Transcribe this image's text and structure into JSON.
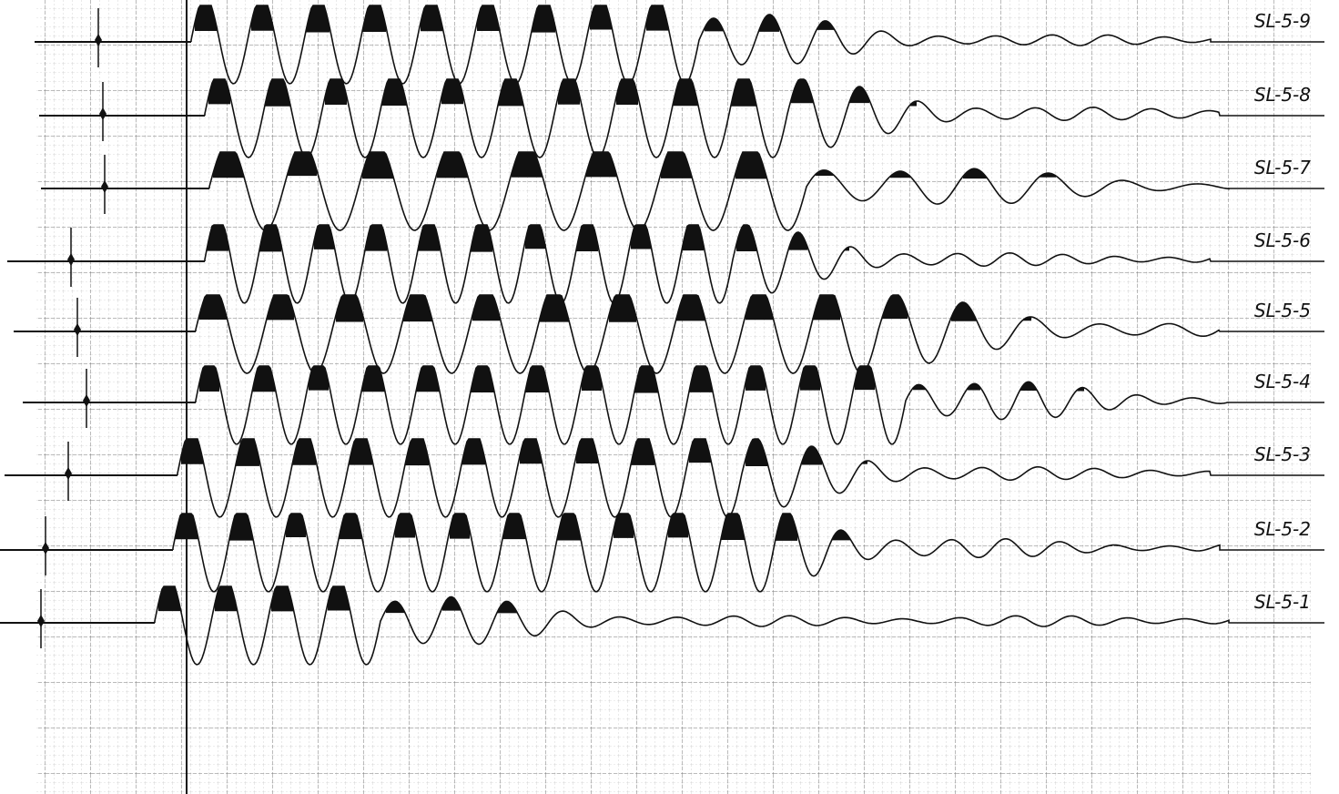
{
  "traces": [
    {
      "label": "SL-5-9"
    },
    {
      "label": "SL-5-8"
    },
    {
      "label": "SL-5-7"
    },
    {
      "label": "SL-5-6"
    },
    {
      "label": "SL-5-5"
    },
    {
      "label": "SL-5-4"
    },
    {
      "label": "SL-5-3"
    },
    {
      "label": "SL-5-2"
    },
    {
      "label": "SL-5-1"
    }
  ]
}
